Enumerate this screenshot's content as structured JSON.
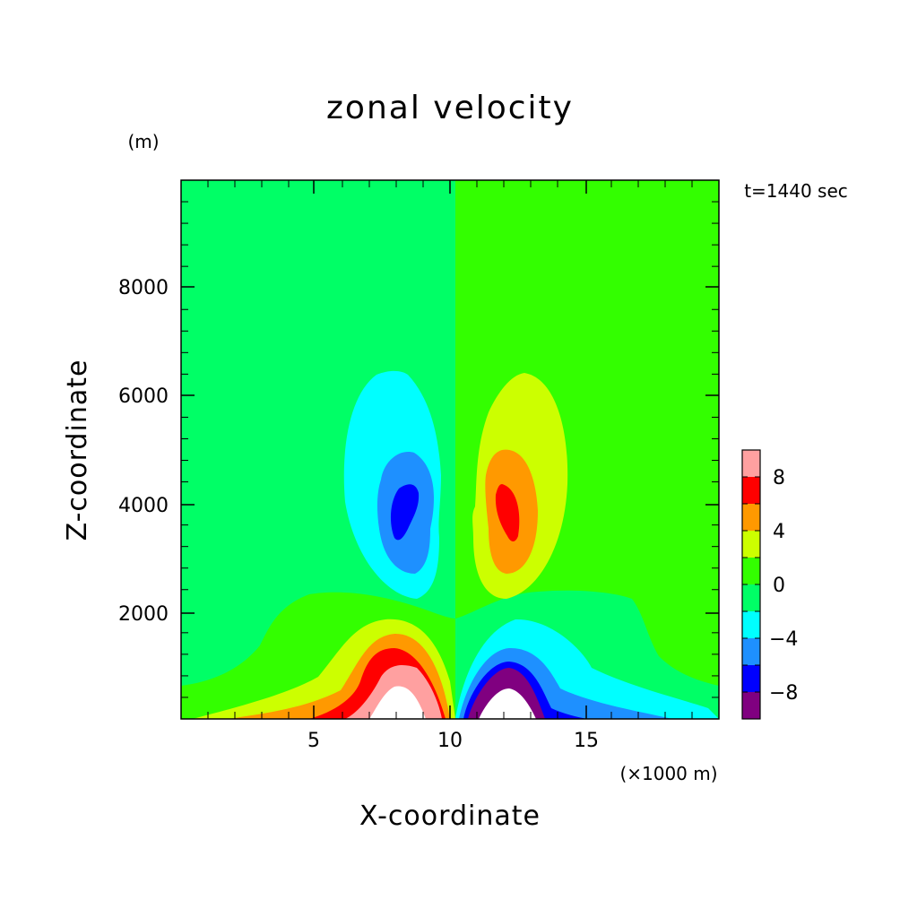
{
  "chart_data": {
    "type": "heatmap",
    "title": "zonal velocity",
    "xlabel": "X-coordinate",
    "ylabel": "Z-coordinate",
    "y_unit": "(m)",
    "x_unit": "(×1000 m)",
    "annotation": "t=1440 sec",
    "x_range": [
      0,
      20
    ],
    "y_range": [
      0,
      10000
    ],
    "x_ticks": [
      5,
      10,
      15
    ],
    "x_tick_labels": [
      "5",
      "10",
      "15"
    ],
    "y_ticks": [
      2000,
      4000,
      6000,
      8000
    ],
    "y_tick_labels": [
      "2000",
      "4000",
      "6000",
      "8000"
    ],
    "grid": false,
    "colorbar": {
      "placement": "right",
      "levels": [
        -10,
        -8,
        -6,
        -4,
        -2,
        0,
        2,
        4,
        6,
        8,
        10
      ],
      "colors": [
        "#800080",
        "#0000ff",
        "#1e90ff",
        "#00ffff",
        "#00ff66",
        "#33ff00",
        "#ccff00",
        "#ff9900",
        "#ff0000",
        "#ffa0a0"
      ],
      "tick_values": [
        8,
        4,
        0,
        -4,
        -8
      ],
      "tick_labels": [
        "8",
        "4",
        "0",
        "−4",
        "−8"
      ]
    },
    "field_features": [
      {
        "kind": "negative_core",
        "center_x": 8.4,
        "center_z": 3900,
        "min_value": -8
      },
      {
        "kind": "positive_core",
        "center_x": 12.2,
        "center_z": 3900,
        "max_value": 8
      },
      {
        "kind": "surface_positive",
        "center_x": 8.5,
        "center_z": 0,
        "max_value": 10
      },
      {
        "kind": "surface_negative",
        "center_x": 12.0,
        "center_z": 0,
        "min_value": -10
      }
    ]
  }
}
